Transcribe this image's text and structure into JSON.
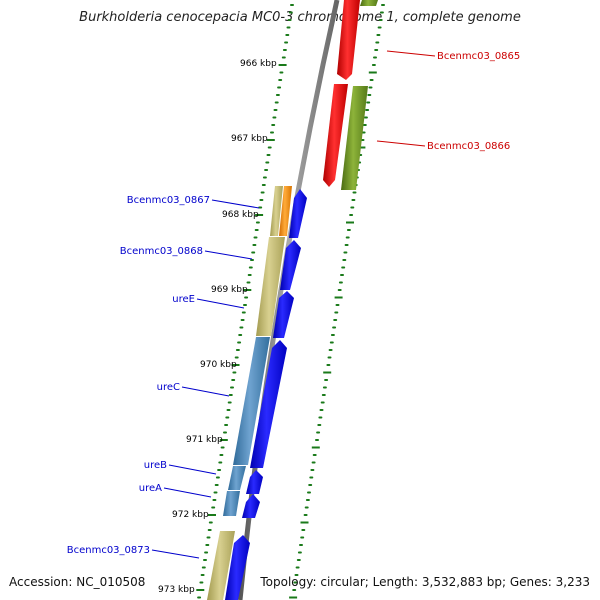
{
  "title": "Burkholderia cenocepacia MC0-3 chromosome 1, complete genome",
  "accession": "Accession: NC_010508",
  "summary": "Topology: circular; Length: 3,532,883 bp; Genes: 3,233",
  "colors": {
    "backbone": "#777777",
    "tick": "#1a7a1a",
    "forward_gene_label": "#cc0000",
    "reverse_gene_label": "#0000cc",
    "cds_red": "#ff1010",
    "cds_olive": "#6b8e23",
    "cds_blue": "#0000f0",
    "cds_khaki": "#bdb76b",
    "cds_orange": "#ff8c00",
    "cds_steel": "#4682b4"
  },
  "tick_labels": [
    {
      "kbp": 966,
      "label": "966 kbp"
    },
    {
      "kbp": 967,
      "label": "967 kbp"
    },
    {
      "kbp": 968,
      "label": "968 kbp"
    },
    {
      "kbp": 969,
      "label": "969 kbp"
    },
    {
      "kbp": 970,
      "label": "970 kbp"
    },
    {
      "kbp": 971,
      "label": "971 kbp"
    },
    {
      "kbp": 972,
      "label": "972 kbp"
    },
    {
      "kbp": 973,
      "label": "973 kbp"
    }
  ],
  "gene_labels": [
    {
      "id": "Bcenmc03_0865",
      "label": "Bcenmc03_0865",
      "strand": "forward"
    },
    {
      "id": "Bcenmc03_0866",
      "label": "Bcenmc03_0866",
      "strand": "forward"
    },
    {
      "id": "Bcenmc03_0867",
      "label": "Bcenmc03_0867",
      "strand": "reverse"
    },
    {
      "id": "Bcenmc03_0868",
      "label": "Bcenmc03_0868",
      "strand": "reverse"
    },
    {
      "id": "ureE",
      "label": "ureE",
      "strand": "reverse"
    },
    {
      "id": "ureC",
      "label": "ureC",
      "strand": "reverse"
    },
    {
      "id": "ureB",
      "label": "ureB",
      "strand": "reverse"
    },
    {
      "id": "ureA",
      "label": "ureA",
      "strand": "reverse"
    },
    {
      "id": "Bcenmc03_0873",
      "label": "Bcenmc03_0873",
      "strand": "reverse"
    }
  ]
}
